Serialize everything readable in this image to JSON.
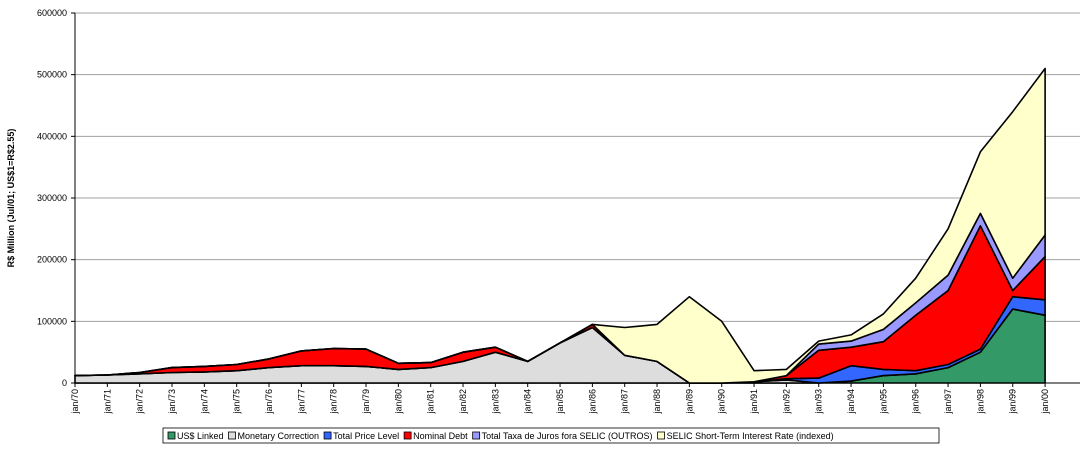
{
  "chart_data": {
    "type": "stacked-area",
    "y_label": "R$ Million (Jul/01; US$1=R$2.55)",
    "categories": [
      "jan/70",
      "jan/71",
      "jan/72",
      "jan/73",
      "jan/74",
      "jan/75",
      "jan/76",
      "jan/77",
      "jan/78",
      "jan/79",
      "jan/80",
      "jan/81",
      "jan/82",
      "jan/83",
      "jan/84",
      "jan/85",
      "jan/86",
      "jan/87",
      "jan/88",
      "jan/89",
      "jan/90",
      "jan/91",
      "jan/92",
      "jan/93",
      "jan/94",
      "jan/95",
      "jan/96",
      "jan/97",
      "jan/98",
      "jan/99",
      "jan/00"
    ],
    "series": [
      {
        "name": "US$ Linked",
        "color": "#339966",
        "values": [
          0,
          0,
          0,
          0,
          0,
          0,
          0,
          0,
          0,
          0,
          0,
          0,
          0,
          0,
          0,
          0,
          0,
          0,
          0,
          0,
          0,
          0,
          0,
          0,
          3000,
          12000,
          15000,
          25000,
          50000,
          120000,
          110000
        ]
      },
      {
        "name": "Monetary Correction",
        "color": "#dddddd",
        "values": [
          12000,
          13000,
          15000,
          17000,
          18000,
          20000,
          25000,
          28000,
          28000,
          27000,
          22000,
          25000,
          35000,
          50000,
          35000,
          65000,
          90000,
          45000,
          35000,
          0,
          0,
          2000,
          5000,
          0,
          0,
          0,
          0,
          0,
          0,
          0,
          0
        ]
      },
      {
        "name": "Total Price Level",
        "color": "#3366ff",
        "values": [
          0,
          0,
          0,
          0,
          0,
          0,
          0,
          0,
          0,
          0,
          0,
          0,
          0,
          0,
          0,
          0,
          0,
          0,
          0,
          0,
          0,
          0,
          2000,
          8000,
          25000,
          10000,
          5000,
          5000,
          5000,
          20000,
          25000
        ]
      },
      {
        "name": "Nominal Debt",
        "color": "#ff0000",
        "values": [
          0,
          0,
          2000,
          8000,
          9000,
          10000,
          14000,
          24000,
          28000,
          28000,
          10000,
          8000,
          15000,
          8000,
          0,
          0,
          5000,
          0,
          0,
          0,
          0,
          0,
          5000,
          45000,
          30000,
          45000,
          90000,
          120000,
          200000,
          10000,
          70000
        ]
      },
      {
        "name": "Total Taxa de Juros fora SELIC (OUTROS)",
        "color": "#9999ff",
        "values": [
          0,
          0,
          0,
          0,
          0,
          0,
          0,
          0,
          0,
          0,
          0,
          0,
          0,
          0,
          0,
          0,
          0,
          0,
          0,
          0,
          0,
          0,
          0,
          10000,
          10000,
          20000,
          20000,
          25000,
          20000,
          20000,
          35000
        ]
      },
      {
        "name": "SELIC Short-Term Interest Rate (indexed)",
        "color": "#ffffcc",
        "values": [
          0,
          0,
          0,
          0,
          0,
          0,
          0,
          0,
          0,
          0,
          0,
          0,
          0,
          0,
          0,
          0,
          0,
          45000,
          60000,
          140000,
          100000,
          18000,
          10000,
          5000,
          10000,
          25000,
          40000,
          75000,
          100000,
          270000,
          270000
        ]
      }
    ],
    "ylim": [
      0,
      600000
    ],
    "yticks": [
      0,
      100000,
      200000,
      300000,
      400000,
      500000,
      600000
    ],
    "grid": true
  }
}
